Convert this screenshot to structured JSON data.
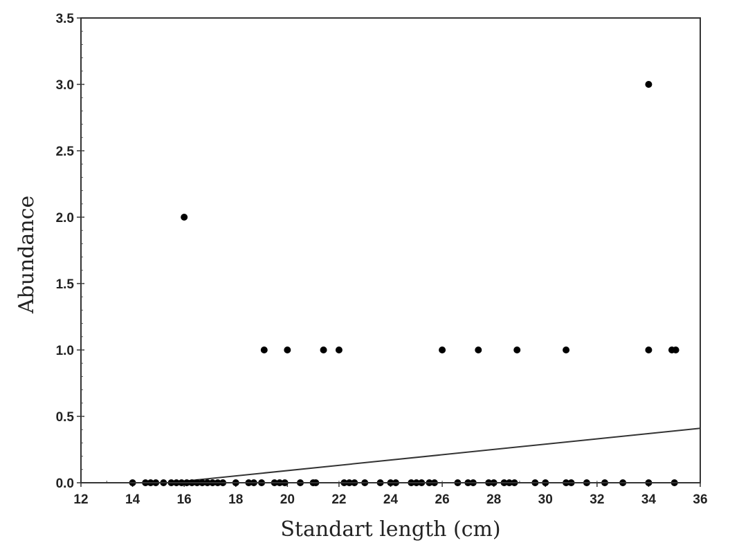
{
  "chart_data": {
    "type": "scatter",
    "title": "",
    "xlabel": "Standart length (cm)",
    "ylabel": "Abundance",
    "xlim": [
      12,
      36
    ],
    "ylim": [
      0,
      3.5
    ],
    "x_ticks": [
      "12",
      "14",
      "16",
      "18",
      "20",
      "22",
      "24",
      "26",
      "28",
      "30",
      "32",
      "34",
      "36"
    ],
    "y_ticks": [
      "0.0",
      "0.5",
      "1.0",
      "1.5",
      "2.0",
      "2.5",
      "3.0",
      "3.5"
    ],
    "grid": false,
    "legend": "none",
    "marker_color": "#000000",
    "series": [
      {
        "points": [
          {
            "x": 14.0,
            "y": 0
          },
          {
            "x": 14.5,
            "y": 0
          },
          {
            "x": 14.7,
            "y": 0
          },
          {
            "x": 14.9,
            "y": 0
          },
          {
            "x": 15.2,
            "y": 0
          },
          {
            "x": 15.5,
            "y": 0
          },
          {
            "x": 15.7,
            "y": 0
          },
          {
            "x": 15.9,
            "y": 0
          },
          {
            "x": 16.1,
            "y": 0
          },
          {
            "x": 16.3,
            "y": 0
          },
          {
            "x": 16.5,
            "y": 0
          },
          {
            "x": 16.7,
            "y": 0
          },
          {
            "x": 16.9,
            "y": 0
          },
          {
            "x": 17.1,
            "y": 0
          },
          {
            "x": 17.3,
            "y": 0
          },
          {
            "x": 17.5,
            "y": 0
          },
          {
            "x": 18.0,
            "y": 0
          },
          {
            "x": 18.5,
            "y": 0
          },
          {
            "x": 18.7,
            "y": 0
          },
          {
            "x": 19.0,
            "y": 0
          },
          {
            "x": 19.5,
            "y": 0
          },
          {
            "x": 19.7,
            "y": 0
          },
          {
            "x": 19.9,
            "y": 0
          },
          {
            "x": 20.5,
            "y": 0
          },
          {
            "x": 21.0,
            "y": 0
          },
          {
            "x": 21.1,
            "y": 0
          },
          {
            "x": 22.2,
            "y": 0
          },
          {
            "x": 22.4,
            "y": 0
          },
          {
            "x": 22.6,
            "y": 0
          },
          {
            "x": 23.0,
            "y": 0
          },
          {
            "x": 23.6,
            "y": 0
          },
          {
            "x": 24.0,
            "y": 0
          },
          {
            "x": 24.2,
            "y": 0
          },
          {
            "x": 24.8,
            "y": 0
          },
          {
            "x": 25.0,
            "y": 0
          },
          {
            "x": 25.2,
            "y": 0
          },
          {
            "x": 25.5,
            "y": 0
          },
          {
            "x": 25.7,
            "y": 0
          },
          {
            "x": 26.6,
            "y": 0
          },
          {
            "x": 27.0,
            "y": 0
          },
          {
            "x": 27.2,
            "y": 0
          },
          {
            "x": 27.8,
            "y": 0
          },
          {
            "x": 28.0,
            "y": 0
          },
          {
            "x": 28.4,
            "y": 0
          },
          {
            "x": 28.6,
            "y": 0
          },
          {
            "x": 28.8,
            "y": 0
          },
          {
            "x": 29.6,
            "y": 0
          },
          {
            "x": 30.0,
            "y": 0
          },
          {
            "x": 30.8,
            "y": 0
          },
          {
            "x": 31.0,
            "y": 0
          },
          {
            "x": 31.6,
            "y": 0
          },
          {
            "x": 32.3,
            "y": 0
          },
          {
            "x": 33.0,
            "y": 0
          },
          {
            "x": 34.0,
            "y": 0
          },
          {
            "x": 35.0,
            "y": 0
          },
          {
            "x": 16.0,
            "y": 2
          },
          {
            "x": 19.1,
            "y": 1
          },
          {
            "x": 20.0,
            "y": 1
          },
          {
            "x": 21.4,
            "y": 1
          },
          {
            "x": 22.0,
            "y": 1
          },
          {
            "x": 26.0,
            "y": 1
          },
          {
            "x": 27.4,
            "y": 1
          },
          {
            "x": 28.9,
            "y": 1
          },
          {
            "x": 30.8,
            "y": 1
          },
          {
            "x": 34.0,
            "y": 1
          },
          {
            "x": 34.9,
            "y": 1
          },
          {
            "x": 35.05,
            "y": 1
          },
          {
            "x": 34.0,
            "y": 3
          }
        ]
      }
    ],
    "trend_line": {
      "x": [
        15.4,
        36
      ],
      "y": [
        0.0,
        0.41
      ]
    }
  }
}
